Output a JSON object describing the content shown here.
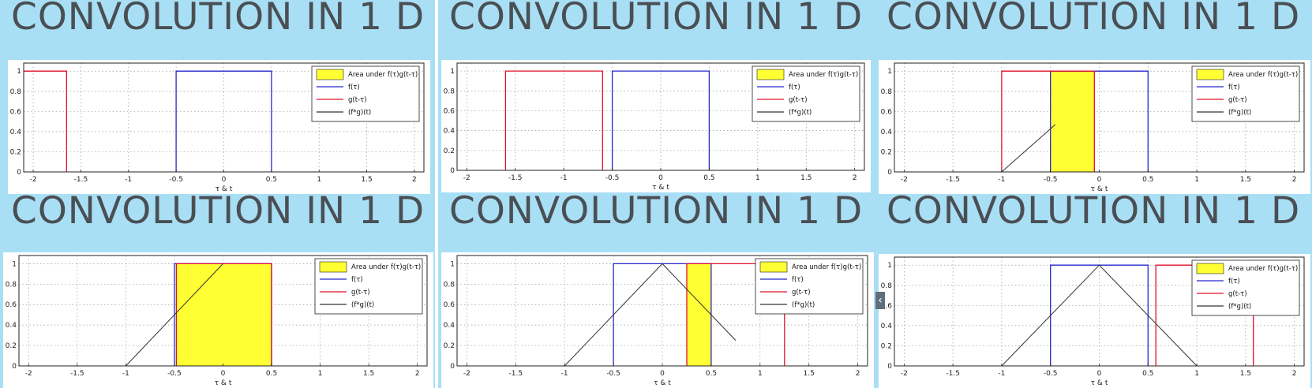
{
  "slide_title": "CONVOLUTION IN 1 D",
  "nav": {
    "prev_icon": "‹"
  },
  "colors": {
    "background": "#a9dff5",
    "title": "#4a4f54",
    "f": "#2626cc",
    "g": "#e0112b",
    "conv": "#333333",
    "area": "#ffff33"
  },
  "chart_data": [
    {
      "type": "line",
      "xlabel": "τ & t",
      "xlim": [
        -2.1,
        2.1
      ],
      "ylim": [
        0,
        1.08
      ],
      "xticks": [
        -2,
        -1.5,
        -1,
        -0.5,
        0,
        0.5,
        1,
        1.5,
        2
      ],
      "yticks": [
        0,
        0.2,
        0.4,
        0.6,
        0.8,
        1
      ],
      "grid": true,
      "legend_position": "top-right",
      "legend": [
        "Area under f(τ)g(t-τ)",
        "f(τ)",
        "g(t-τ)",
        "(f*g)(t)"
      ],
      "series": [
        {
          "x": [
            -0.5,
            -0.5,
            0.5,
            0.5
          ],
          "y": [
            0,
            1,
            1,
            0
          ]
        },
        {
          "x": [
            -2.1,
            -1.65,
            -1.65
          ],
          "y": [
            1,
            1,
            0
          ]
        },
        {
          "x": [],
          "y": []
        }
      ],
      "area": null
    },
    {
      "type": "line",
      "xlabel": "τ & t",
      "xlim": [
        -2.1,
        2.1
      ],
      "ylim": [
        0,
        1.08
      ],
      "xticks": [
        -2,
        -1.5,
        -1,
        -0.5,
        0,
        0.5,
        1,
        1.5,
        2
      ],
      "yticks": [
        0,
        0.2,
        0.4,
        0.6,
        0.8,
        1
      ],
      "grid": true,
      "legend_position": "top-right",
      "legend": [
        "Area under f(τ)g(t-τ)",
        "f(τ)",
        "g(t-τ)",
        "(f*g)(t)"
      ],
      "series": [
        {
          "x": [
            -0.5,
            -0.5,
            0.5,
            0.5
          ],
          "y": [
            0,
            1,
            1,
            0
          ]
        },
        {
          "x": [
            -1.6,
            -1.6,
            -0.6,
            -0.6
          ],
          "y": [
            0,
            1,
            1,
            0
          ]
        },
        {
          "x": [],
          "y": []
        }
      ],
      "area": null
    },
    {
      "type": "line",
      "xlabel": "τ & t",
      "xlim": [
        -2.1,
        2.1
      ],
      "ylim": [
        0,
        1.08
      ],
      "xticks": [
        -2,
        -1.5,
        -1,
        -0.5,
        0,
        0.5,
        1,
        1.5,
        2
      ],
      "yticks": [
        0,
        0.2,
        0.4,
        0.6,
        0.8,
        1
      ],
      "grid": true,
      "legend_position": "top-right",
      "legend": [
        "Area under f(τ)g(t-τ)",
        "f(τ)",
        "g(t-τ)",
        "(f*g)(t)"
      ],
      "series": [
        {
          "x": [
            -0.5,
            -0.5,
            0.5,
            0.5
          ],
          "y": [
            0,
            1,
            1,
            0
          ]
        },
        {
          "x": [
            -1.0,
            -1.0,
            -0.05,
            -0.05
          ],
          "y": [
            0,
            1,
            1,
            0
          ]
        },
        {
          "x": [
            -1.0,
            -0.45
          ],
          "y": [
            0,
            0.47
          ]
        }
      ],
      "area": [
        -0.5,
        -0.05
      ]
    },
    {
      "type": "line",
      "xlabel": "τ & t",
      "xlim": [
        -2.1,
        2.1
      ],
      "ylim": [
        0,
        1.08
      ],
      "xticks": [
        -2,
        -1.5,
        -1,
        -0.5,
        0,
        0.5,
        1,
        1.5,
        2
      ],
      "yticks": [
        0,
        0.2,
        0.4,
        0.6,
        0.8,
        1
      ],
      "grid": true,
      "legend_position": "top-right",
      "legend": [
        "Area under f(τ)g(t-τ)",
        "f(τ)",
        "g(t-τ)",
        "(f*g)(t)"
      ],
      "series": [
        {
          "x": [
            -0.5,
            -0.5,
            0.5,
            0.5
          ],
          "y": [
            0,
            1,
            1,
            0
          ]
        },
        {
          "x": [
            -0.48,
            -0.48,
            0.5,
            0.5
          ],
          "y": [
            0,
            1,
            1,
            0
          ]
        },
        {
          "x": [
            -1.0,
            0.0
          ],
          "y": [
            0,
            1
          ]
        }
      ],
      "area": [
        -0.48,
        0.5
      ]
    },
    {
      "type": "line",
      "xlabel": "τ & t",
      "xlim": [
        -2.1,
        2.1
      ],
      "ylim": [
        0,
        1.08
      ],
      "xticks": [
        -2,
        -1.5,
        -1,
        -0.5,
        0,
        0.5,
        1,
        1.5,
        2
      ],
      "yticks": [
        0,
        0.2,
        0.4,
        0.6,
        0.8,
        1
      ],
      "grid": true,
      "legend_position": "top-right",
      "legend": [
        "Area under f(τ)g(t-τ)",
        "f(τ)",
        "g(t-τ)",
        "(f*g)(t)"
      ],
      "series": [
        {
          "x": [
            -0.5,
            -0.5,
            0.5,
            0.5
          ],
          "y": [
            0,
            1,
            1,
            0
          ]
        },
        {
          "x": [
            0.25,
            0.25,
            1.25,
            1.25
          ],
          "y": [
            0,
            1,
            1,
            0
          ]
        },
        {
          "x": [
            -1.0,
            0.0,
            0.75
          ],
          "y": [
            0,
            1,
            0.25
          ]
        }
      ],
      "area": [
        0.25,
        0.5
      ]
    },
    {
      "type": "line",
      "xlabel": "τ & t",
      "xlim": [
        -2.1,
        2.1
      ],
      "ylim": [
        0,
        1.08
      ],
      "xticks": [
        -2,
        -1.5,
        -1,
        -0.5,
        0,
        0.5,
        1,
        1.5,
        2
      ],
      "yticks": [
        0,
        0.2,
        0.4,
        0.6,
        0.8,
        1
      ],
      "grid": true,
      "legend_position": "top-right",
      "legend": [
        "Area under f(τ)g(t-τ)",
        "f(τ)",
        "g(t-τ)",
        "(f*g)(t)"
      ],
      "series": [
        {
          "x": [
            -0.5,
            -0.5,
            0.5,
            0.5
          ],
          "y": [
            0,
            1,
            1,
            0
          ]
        },
        {
          "x": [
            0.58,
            0.58,
            1.58,
            1.58
          ],
          "y": [
            0,
            1,
            1,
            0
          ]
        },
        {
          "x": [
            -1.0,
            0.0,
            1.0
          ],
          "y": [
            0,
            1,
            0
          ]
        }
      ],
      "area": null
    }
  ]
}
